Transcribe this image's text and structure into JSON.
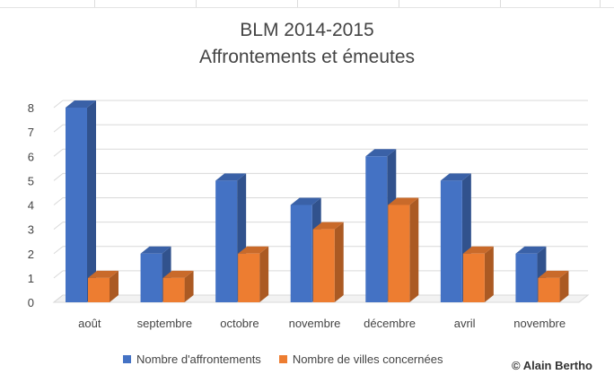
{
  "chart_data": {
    "type": "bar",
    "title": "BLM 2014-2015",
    "subtitle": "Affrontements et émeutes",
    "categories": [
      "août",
      "septembre",
      "octobre",
      "novembre",
      "décembre",
      "avril",
      "novembre"
    ],
    "series": [
      {
        "name": "Nombre d'affrontements",
        "values": [
          8,
          2,
          5,
          4,
          6,
          5,
          2
        ],
        "color": "#4472C4"
      },
      {
        "name": "Nombre de villes concernées",
        "values": [
          1,
          1,
          2,
          3,
          4,
          2,
          1
        ],
        "color": "#ED7D31"
      }
    ],
    "ylim": [
      0,
      8
    ],
    "yticks": [
      0,
      1,
      2,
      3,
      4,
      5,
      6,
      7,
      8
    ],
    "grid": true,
    "legend_position": "bottom",
    "style": "3d-clustered-column"
  },
  "credit": "© Alain Bertho"
}
